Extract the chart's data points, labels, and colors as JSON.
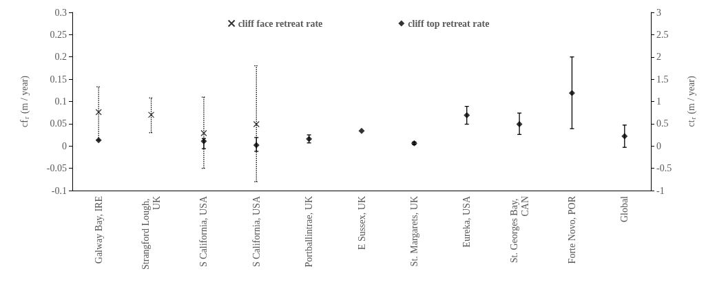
{
  "chart_data": {
    "type": "scatter",
    "ylabel": "cf$_{r}$ (m / year)",
    "y2label": "ct$_{r}$ (m / year)",
    "categories": [
      "Galway Bay, IRE",
      "Strangford Lough, UK",
      "S California, USA",
      "S California, USA",
      "Portballintrae, UK",
      "E Sussex, UK",
      "St. Margarets, UK",
      "Eureka, USA",
      "St. Georges Bay, CAN",
      "Forte Novo, POR",
      "Global"
    ],
    "series": [
      {
        "name": "cliff face retreat rate",
        "color": "#000000",
        "marker": "cross",
        "line_style": "dotted",
        "values": [
          0.076,
          0.07,
          0.029,
          0.049,
          null,
          null,
          null,
          null,
          null,
          null,
          null
        ],
        "errors": [
          [
            0.013,
            0.133
          ],
          [
            0.03,
            0.108
          ],
          [
            -0.05,
            0.11
          ],
          [
            -0.08,
            0.18
          ],
          null,
          null,
          null,
          null,
          null,
          null,
          null
        ]
      },
      {
        "name": "cliff top retreat rate",
        "color": "#000000",
        "marker": "diamond",
        "line_style": "solid",
        "axis": "y2",
        "values": [
          0.13,
          null,
          0.11,
          0.02,
          0.16,
          0.34,
          0.06,
          0.69,
          0.49,
          1.19,
          0.22
        ],
        "errors": [
          null,
          null,
          [
            -0.06,
            0.17
          ],
          [
            -0.12,
            0.19
          ],
          [
            0.07,
            0.25
          ],
          null,
          [
            0.03,
            0.09
          ],
          [
            0.49,
            0.89
          ],
          [
            0.26,
            0.74
          ],
          [
            0.39,
            2.0
          ],
          [
            -0.03,
            0.47
          ]
        ]
      }
    ],
    "ylim": [
      -0.1,
      0.3
    ],
    "yticks": [
      -0.1,
      -0.05,
      0,
      0.05,
      0.1,
      0.15,
      0.2,
      0.25,
      0.3
    ],
    "y2lim": [
      -1,
      3
    ],
    "y2ticks": [
      -1,
      -0.5,
      0,
      0.5,
      1,
      1.5,
      2,
      2.5,
      3
    ],
    "grid": false,
    "legend": "top"
  }
}
